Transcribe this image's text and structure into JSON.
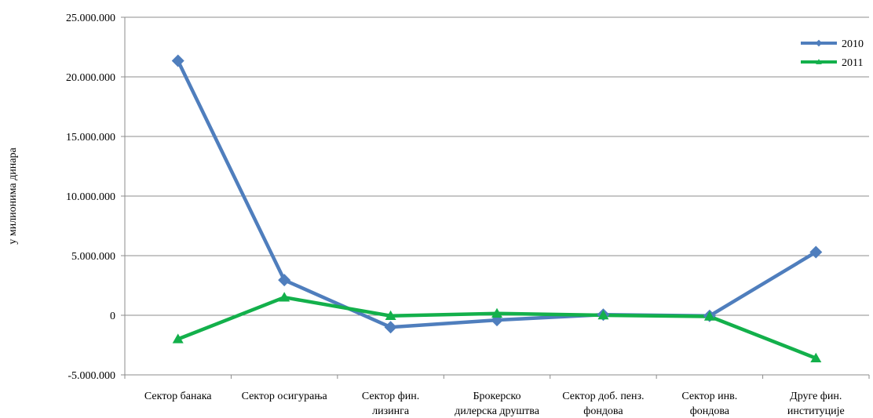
{
  "chart_data": {
    "type": "line",
    "categories": [
      [
        "Сектор банака"
      ],
      [
        "Сектор осигурања"
      ],
      [
        "Сектор фин.",
        "лизинга"
      ],
      [
        "Брокерско",
        "дилерска друштва"
      ],
      [
        "Сектор доб. пенз.",
        "фондова"
      ],
      [
        "Сектор инв.",
        "фондова"
      ],
      [
        "Друге фин.",
        "институције"
      ]
    ],
    "series": [
      {
        "name": "2010",
        "color": "#4f7ebd",
        "marker": "diamond",
        "values": [
          21350000,
          2950000,
          -1000000,
          -400000,
          50000,
          -50000,
          5300000
        ]
      },
      {
        "name": "2011",
        "color": "#13b04b",
        "marker": "triangle",
        "values": [
          -2000000,
          1500000,
          -50000,
          150000,
          0,
          -100000,
          -3600000
        ]
      }
    ],
    "ylabel": "у милионима динара",
    "xlabel": "",
    "ylim": [
      -5000000,
      25000000
    ],
    "yticks": [
      -5000000,
      0,
      5000000,
      10000000,
      15000000,
      20000000,
      25000000
    ],
    "ytick_labels": [
      "-5.000.000",
      "0",
      "5.000.000",
      "10.000.000",
      "15.000.000",
      "20.000.000",
      "25.000.000"
    ],
    "grid": true,
    "legend": "top-right"
  }
}
